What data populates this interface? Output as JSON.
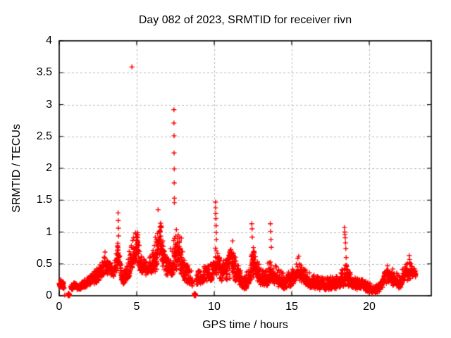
{
  "chart_data": {
    "type": "scatter",
    "title": "Day 082 of 2023, SRMTID for receiver rivn",
    "xlabel": "GPS time / hours",
    "ylabel": "SRMTID / TECUs",
    "xlim": [
      0,
      24
    ],
    "ylim": [
      0,
      4
    ],
    "xticks": [
      {
        "v": 0,
        "label": "0"
      },
      {
        "v": 5,
        "label": "5"
      },
      {
        "v": 10,
        "label": "10"
      },
      {
        "v": 15,
        "label": "15"
      },
      {
        "v": 20,
        "label": "20"
      }
    ],
    "yticks": [
      {
        "v": 0,
        "label": "0"
      },
      {
        "v": 0.5,
        "label": "0.5"
      },
      {
        "v": 1,
        "label": "1"
      },
      {
        "v": 1.5,
        "label": "1.5"
      },
      {
        "v": 2,
        "label": "2"
      },
      {
        "v": 2.5,
        "label": "2.5"
      },
      {
        "v": 3,
        "label": "3"
      },
      {
        "v": 3.5,
        "label": "3.5"
      },
      {
        "v": 4,
        "label": "4"
      }
    ],
    "grid": "dashed",
    "legend": "none",
    "marker": "plus",
    "marker_color": "#ff0000",
    "grid_color": "#b9b9b9",
    "border_color": "#000000",
    "background": "#ffffff",
    "sample_interval_hours": 0.008333,
    "band_profile": {
      "description": "Dense 30s-cadence scatter; envelope [hour, y_low, y_high] control points",
      "segments": [
        {
          "env": [
            [
              0.0,
              0.13,
              0.27
            ],
            [
              0.15,
              0.13,
              0.25
            ],
            [
              0.32,
              0.11,
              0.22
            ]
          ]
        },
        {
          "env": [
            [
              0.75,
              0.1,
              0.22
            ],
            [
              1.0,
              0.09,
              0.2
            ],
            [
              1.3,
              0.08,
              0.18
            ],
            [
              1.6,
              0.11,
              0.25
            ],
            [
              1.9,
              0.14,
              0.3
            ],
            [
              2.2,
              0.17,
              0.36
            ],
            [
              2.5,
              0.22,
              0.45
            ],
            [
              2.75,
              0.3,
              0.58
            ],
            [
              2.95,
              0.38,
              0.7
            ],
            [
              3.1,
              0.34,
              0.64
            ],
            [
              3.3,
              0.3,
              0.55
            ],
            [
              3.5,
              0.28,
              0.52
            ],
            [
              3.65,
              0.32,
              0.62
            ],
            [
              3.78,
              0.38,
              0.9
            ],
            [
              3.85,
              0.35,
              0.75
            ],
            [
              4.0,
              0.2,
              0.45
            ],
            [
              4.2,
              0.18,
              0.42
            ],
            [
              4.4,
              0.25,
              0.55
            ],
            [
              4.6,
              0.35,
              0.8
            ],
            [
              4.8,
              0.48,
              1.0
            ],
            [
              4.95,
              0.55,
              1.1
            ],
            [
              5.1,
              0.45,
              0.95
            ],
            [
              5.3,
              0.33,
              0.68
            ],
            [
              5.55,
              0.27,
              0.55
            ],
            [
              5.8,
              0.28,
              0.58
            ],
            [
              6.05,
              0.33,
              0.72
            ],
            [
              6.25,
              0.4,
              1.1
            ],
            [
              6.4,
              0.45,
              1.33
            ],
            [
              6.55,
              0.4,
              1.15
            ],
            [
              6.75,
              0.33,
              0.82
            ],
            [
              6.95,
              0.28,
              0.62
            ],
            [
              7.15,
              0.3,
              0.72
            ],
            [
              7.3,
              0.33,
              0.95
            ],
            [
              7.45,
              0.38,
              1.25
            ],
            [
              7.6,
              0.42,
              1.28
            ],
            [
              7.75,
              0.4,
              1.15
            ],
            [
              7.9,
              0.33,
              0.9
            ],
            [
              8.05,
              0.25,
              0.62
            ],
            [
              8.25,
              0.2,
              0.5
            ],
            [
              8.45,
              0.17,
              0.44
            ],
            [
              8.62,
              0.15,
              0.4
            ]
          ]
        },
        {
          "env": [
            [
              8.85,
              0.15,
              0.38
            ],
            [
              9.1,
              0.17,
              0.42
            ],
            [
              9.4,
              0.2,
              0.48
            ],
            [
              9.7,
              0.23,
              0.52
            ],
            [
              9.95,
              0.26,
              0.58
            ],
            [
              10.1,
              0.3,
              0.8
            ],
            [
              10.25,
              0.26,
              0.65
            ],
            [
              10.5,
              0.21,
              0.55
            ],
            [
              10.75,
              0.24,
              0.6
            ],
            [
              11.0,
              0.27,
              0.72
            ],
            [
              11.15,
              0.28,
              0.8
            ],
            [
              11.35,
              0.24,
              0.62
            ],
            [
              11.6,
              0.17,
              0.48
            ],
            [
              11.85,
              0.1,
              0.33
            ],
            [
              12.1,
              0.12,
              0.38
            ],
            [
              12.3,
              0.18,
              0.55
            ],
            [
              12.45,
              0.28,
              0.95
            ],
            [
              12.6,
              0.26,
              0.8
            ],
            [
              12.8,
              0.2,
              0.58
            ],
            [
              13.05,
              0.13,
              0.4
            ],
            [
              13.35,
              0.15,
              0.45
            ],
            [
              13.55,
              0.19,
              0.6
            ],
            [
              13.7,
              0.17,
              0.55
            ],
            [
              13.95,
              0.15,
              0.48
            ],
            [
              14.25,
              0.12,
              0.4
            ],
            [
              14.55,
              0.11,
              0.34
            ],
            [
              14.85,
              0.14,
              0.4
            ],
            [
              15.1,
              0.17,
              0.45
            ],
            [
              15.4,
              0.24,
              0.6
            ],
            [
              15.65,
              0.2,
              0.52
            ],
            [
              15.95,
              0.15,
              0.4
            ],
            [
              16.25,
              0.12,
              0.35
            ],
            [
              16.6,
              0.1,
              0.32
            ],
            [
              17.0,
              0.09,
              0.29
            ],
            [
              17.4,
              0.09,
              0.29
            ],
            [
              17.8,
              0.11,
              0.32
            ],
            [
              18.1,
              0.12,
              0.35
            ],
            [
              18.4,
              0.16,
              0.5
            ],
            [
              18.6,
              0.14,
              0.45
            ],
            [
              18.85,
              0.11,
              0.33
            ],
            [
              19.15,
              0.09,
              0.29
            ],
            [
              19.5,
              0.08,
              0.26
            ],
            [
              19.85,
              0.07,
              0.23
            ],
            [
              20.15,
              0.04,
              0.18
            ],
            [
              20.45,
              0.03,
              0.16
            ],
            [
              20.7,
              0.07,
              0.23
            ],
            [
              20.95,
              0.13,
              0.34
            ],
            [
              21.2,
              0.2,
              0.5
            ],
            [
              21.4,
              0.19,
              0.46
            ],
            [
              21.65,
              0.14,
              0.38
            ],
            [
              21.9,
              0.12,
              0.34
            ],
            [
              22.15,
              0.15,
              0.42
            ],
            [
              22.4,
              0.21,
              0.5
            ],
            [
              22.6,
              0.26,
              0.56
            ],
            [
              22.8,
              0.26,
              0.5
            ],
            [
              23.0,
              0.22,
              0.42
            ]
          ]
        }
      ]
    },
    "outliers": [
      [
        0.36,
        0.01
      ],
      [
        0.56,
        0.01
      ],
      [
        0.58,
        0.0
      ],
      [
        0.58,
        0.03
      ],
      [
        0.6,
        0.01
      ],
      [
        0.6,
        0.04
      ],
      [
        0.62,
        0.0
      ],
      [
        0.62,
        0.02
      ],
      [
        0.64,
        0.01
      ],
      [
        0.64,
        0.03
      ],
      [
        0.66,
        0.0
      ],
      [
        0.66,
        0.02
      ],
      [
        0.68,
        0.01
      ],
      [
        3.8,
        1.3
      ],
      [
        3.81,
        1.18
      ],
      [
        3.82,
        1.06
      ],
      [
        3.83,
        0.94
      ],
      [
        4.69,
        3.59
      ],
      [
        6.38,
        1.35
      ],
      [
        7.4,
        2.92
      ],
      [
        7.4,
        2.71
      ],
      [
        7.41,
        2.51
      ],
      [
        7.41,
        2.24
      ],
      [
        7.42,
        1.99
      ],
      [
        7.42,
        1.77
      ],
      [
        7.43,
        1.53
      ],
      [
        7.43,
        1.46
      ],
      [
        8.7,
        0.01
      ],
      [
        8.72,
        0.0
      ],
      [
        8.72,
        0.03
      ],
      [
        8.74,
        0.01
      ],
      [
        8.74,
        0.04
      ],
      [
        8.76,
        0.0
      ],
      [
        8.76,
        0.02
      ],
      [
        8.78,
        0.01
      ],
      [
        8.78,
        0.03
      ],
      [
        8.8,
        0.0
      ],
      [
        8.8,
        0.02
      ],
      [
        10.08,
        1.47
      ],
      [
        10.09,
        1.38
      ],
      [
        10.1,
        1.29
      ],
      [
        10.11,
        1.21
      ],
      [
        10.12,
        1.1
      ],
      [
        10.13,
        0.99
      ],
      [
        10.14,
        0.88
      ],
      [
        11.18,
        0.86
      ],
      [
        12.42,
        1.13
      ],
      [
        12.44,
        1.05
      ],
      [
        13.62,
        1.13
      ],
      [
        13.64,
        1.01
      ],
      [
        13.66,
        0.88
      ],
      [
        13.68,
        0.76
      ],
      [
        15.45,
        0.62
      ],
      [
        18.4,
        1.07
      ],
      [
        18.42,
        1.0
      ],
      [
        18.43,
        0.96
      ],
      [
        18.45,
        0.91
      ],
      [
        18.47,
        0.83
      ],
      [
        18.49,
        0.74
      ],
      [
        18.51,
        0.6
      ],
      [
        18.53,
        0.48
      ],
      [
        22.58,
        0.63
      ],
      [
        22.6,
        0.57
      ],
      [
        22.62,
        0.52
      ]
    ]
  }
}
